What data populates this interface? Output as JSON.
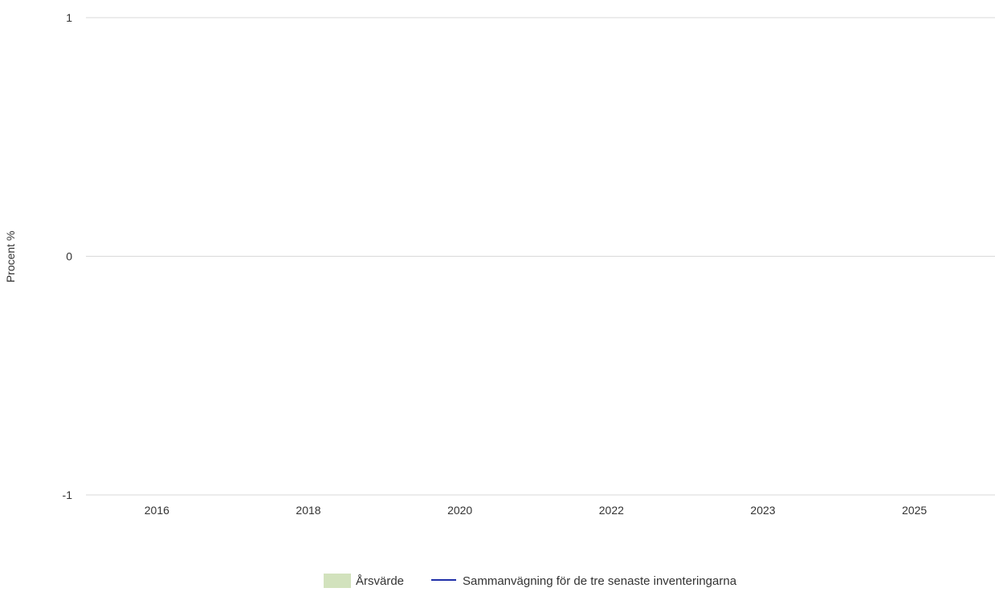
{
  "chart_data": {
    "type": "bar",
    "title": "",
    "xlabel": "",
    "ylabel": "Procent %",
    "categories": [
      "2016",
      "2018",
      "2020",
      "2022",
      "2023",
      "2025"
    ],
    "ylim": [
      -1,
      1
    ],
    "y_ticks": [
      "1",
      "0",
      "-1"
    ],
    "grid": true,
    "legend_position": "bottom-center",
    "series": [
      {
        "name": "Årsvärde",
        "type": "bar",
        "color": "#d2e2bd",
        "values": [
          null,
          null,
          null,
          null,
          null,
          null
        ]
      },
      {
        "name": "Sammanvägning för de tre senaste inventeringarna",
        "type": "line",
        "color": "#1f2fa8",
        "values": [
          null,
          null,
          null,
          null,
          null,
          null
        ]
      }
    ]
  }
}
